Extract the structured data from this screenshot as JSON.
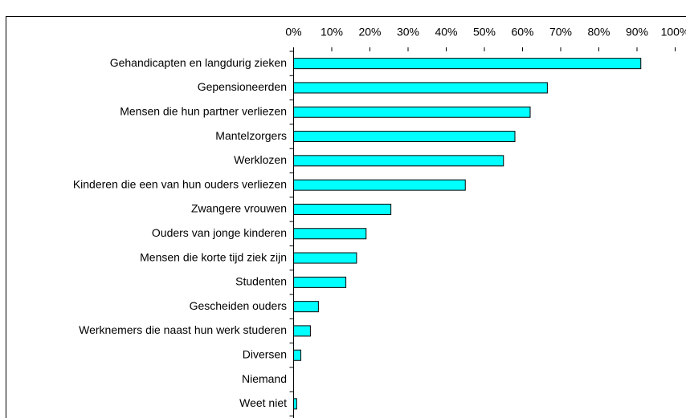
{
  "chart_data": {
    "type": "barh",
    "categories": [
      "Gehandicapten en langdurig zieken",
      "Gepensioneerden",
      "Mensen die hun partner verliezen",
      "Mantelzorgers",
      "Werklozen",
      "Kinderen die een van hun ouders verliezen",
      "Zwangere vrouwen",
      "Ouders van jonge kinderen",
      "Mensen die korte tijd ziek zijn",
      "Studenten",
      "Gescheiden ouders",
      "Werknemers die naast hun werk studeren",
      "Diversen",
      "Niemand",
      "Weet niet"
    ],
    "values": [
      91,
      66.5,
      62,
      58,
      55,
      45,
      25.5,
      19,
      16.5,
      13.7,
      6.5,
      4.4,
      1.9,
      0,
      0.8
    ],
    "color": "#00ffff",
    "xlim": [
      0,
      100
    ],
    "xticks": [
      {
        "value": 0,
        "label": "0%"
      },
      {
        "value": 10,
        "label": "10%"
      },
      {
        "value": 20,
        "label": "20%"
      },
      {
        "value": 30,
        "label": "30%"
      },
      {
        "value": 40,
        "label": "40%"
      },
      {
        "value": 50,
        "label": "50%"
      },
      {
        "value": 60,
        "label": "60%"
      },
      {
        "value": 70,
        "label": "70%"
      },
      {
        "value": 80,
        "label": "80%"
      },
      {
        "value": 90,
        "label": "90%"
      },
      {
        "value": 100,
        "label": "100%"
      }
    ],
    "grid": false
  }
}
